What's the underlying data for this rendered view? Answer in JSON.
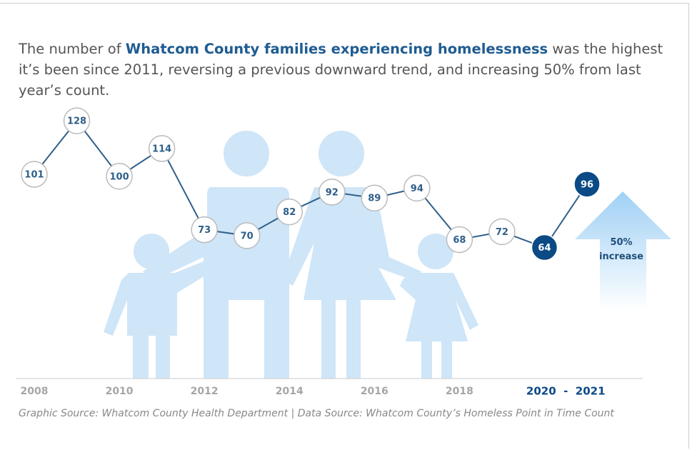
{
  "chart_data": {
    "type": "line",
    "title_parts": [
      "The number of ",
      "Whatcom County families experiencing homelessness",
      " was the highest it’s been since 2011, reversing a previous downward trend, and increasing 50% from last year’s count."
    ],
    "x": [
      2008,
      2009,
      2010,
      2011,
      2012,
      2013,
      2014,
      2015,
      2016,
      2017,
      2018,
      2019,
      2020,
      2021
    ],
    "values": [
      101,
      128,
      100,
      114,
      73,
      70,
      82,
      92,
      89,
      94,
      68,
      72,
      64,
      96
    ],
    "xlim": [
      2008,
      2021
    ],
    "xticks": [
      2008,
      2010,
      2012,
      2014,
      2016,
      2018
    ],
    "ylim": [
      0,
      189
    ],
    "color": "#2f5f8a",
    "highlight_color": "#0b4a85",
    "highlight_from": 2020,
    "highlight_label": "2020  -  2021",
    "arrow_label": "50% increase",
    "source": "Graphic Source: Whatcom County Health Department | Data Source: Whatcom County’s Homeless Point in Time Count"
  }
}
